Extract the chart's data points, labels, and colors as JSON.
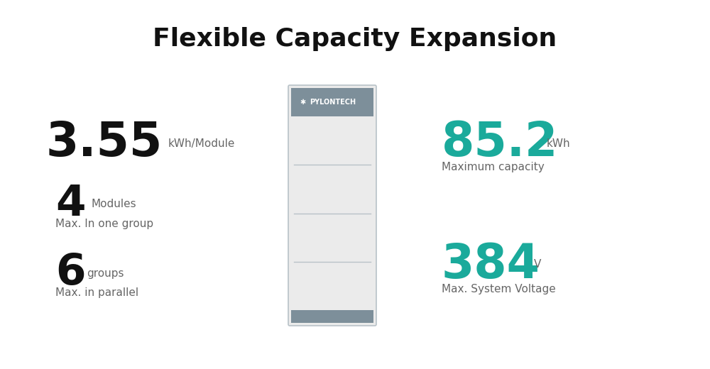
{
  "title": "Flexible Capacity Expansion",
  "title_fontsize": 26,
  "title_fontweight": "bold",
  "bg_color": "#ffffff",
  "teal_color": "#1aaa9b",
  "black_color": "#111111",
  "gray_color": "#666666",
  "light_gray": "#ebebeb",
  "mid_gray": "#b8c2c8",
  "dark_gray_header": "#7d8f9a",
  "stat1_big": "3.55",
  "stat1_unit": "kWh/Module",
  "stat2_big": "4",
  "stat2_unit": "Modules",
  "stat2_sub": "Max. In one group",
  "stat3_big": "6",
  "stat3_unit": "groups",
  "stat3_sub": "Max. in parallel",
  "stat4_big": "85.2",
  "stat4_unit": "kWh",
  "stat4_sub": "Maximum capacity",
  "stat5_big": "384",
  "stat5_unit": "V",
  "stat5_sub": "Max. System Voltage",
  "pylontech_label": "  PYLONTECH"
}
